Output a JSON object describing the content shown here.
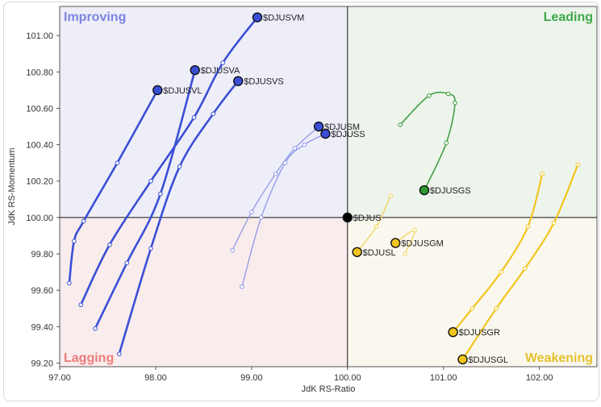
{
  "chart_data": {
    "type": "scatter",
    "subtype": "relative-rotation-graph",
    "xlabel": "JdK RS-Ratio",
    "ylabel": "JdK RS-Momentum",
    "xlim": [
      97.0,
      102.6
    ],
    "ylim": [
      99.18,
      101.16
    ],
    "center": [
      100.0,
      100.0
    ],
    "x_ticks": [
      97.0,
      98.0,
      99.0,
      100.0,
      101.0,
      102.0
    ],
    "x_tick_labels": [
      "97.00",
      "98.00",
      "99.00",
      "100.00",
      "101.00",
      "102.00"
    ],
    "y_ticks": [
      99.2,
      99.4,
      99.6,
      99.8,
      100.0,
      100.2,
      100.4,
      100.6,
      100.8,
      101.0
    ],
    "y_tick_labels": [
      "99.20",
      "99.40",
      "99.60",
      "99.80",
      "100.00",
      "100.20",
      "100.40",
      "100.60",
      "100.80",
      "101.00"
    ],
    "quadrants": [
      {
        "label": "Improving",
        "position": "top-left",
        "bg": "#eeeef9",
        "color": "#7b85e0"
      },
      {
        "label": "Leading",
        "position": "top-right",
        "bg": "#ecf4ec",
        "color": "#3fa84a"
      },
      {
        "label": "Lagging",
        "position": "bottom-left",
        "bg": "#f9ecec",
        "color": "#ef7b7b"
      },
      {
        "label": "Weakening",
        "position": "bottom-right",
        "bg": "#faf8ee",
        "color": "#e6c02c"
      }
    ],
    "series": [
      {
        "name": "$DJUSVM",
        "line_color": "#3a4fd6",
        "head_color": "#3a4fd6",
        "line_width": 2.6,
        "points": [
          [
            97.22,
            99.52
          ],
          [
            97.52,
            99.85
          ],
          [
            97.95,
            100.2
          ],
          [
            98.4,
            100.55
          ],
          [
            98.7,
            100.85
          ],
          [
            99.06,
            101.1
          ]
        ]
      },
      {
        "name": "$DJUSVA",
        "line_color": "#3a4fd6",
        "head_color": "#3a4fd6",
        "line_width": 2.6,
        "points": [
          [
            97.37,
            99.39
          ],
          [
            97.7,
            99.75
          ],
          [
            98.05,
            100.13
          ],
          [
            98.41,
            100.81
          ]
        ]
      },
      {
        "name": "$DJUSVL",
        "line_color": "#3a4fd6",
        "head_color": "#3a4fd6",
        "line_width": 2.6,
        "points": [
          [
            97.1,
            99.64
          ],
          [
            97.15,
            99.87
          ],
          [
            97.25,
            99.98
          ],
          [
            97.6,
            100.3
          ],
          [
            98.02,
            100.7
          ]
        ]
      },
      {
        "name": "$DJUSVS",
        "line_color": "#3a4fd6",
        "head_color": "#3a4fd6",
        "line_width": 2.6,
        "points": [
          [
            97.62,
            99.25
          ],
          [
            97.95,
            99.83
          ],
          [
            98.25,
            100.28
          ],
          [
            98.6,
            100.57
          ],
          [
            98.86,
            100.75
          ]
        ]
      },
      {
        "name": "$DJUSM",
        "line_color": "#8f98e8",
        "head_color": "#3a4fd6",
        "line_width": 1.3,
        "points": [
          [
            98.8,
            99.82
          ],
          [
            99.0,
            100.03
          ],
          [
            99.25,
            100.24
          ],
          [
            99.45,
            100.38
          ],
          [
            99.7,
            100.5
          ]
        ]
      },
      {
        "name": "$DJUSS",
        "line_color": "#8f98e8",
        "head_color": "#3a4fd6",
        "line_width": 1.3,
        "points": [
          [
            98.9,
            99.62
          ],
          [
            99.1,
            100.0
          ],
          [
            99.35,
            100.3
          ],
          [
            99.55,
            100.4
          ],
          [
            99.77,
            100.46
          ]
        ]
      },
      {
        "name": "$DJUSGS",
        "line_color": "#3a9a3a",
        "head_color": "#2e9a2e",
        "line_width": 1.5,
        "points": [
          [
            100.55,
            100.51
          ],
          [
            100.85,
            100.67
          ],
          [
            101.05,
            100.68
          ],
          [
            101.12,
            100.63
          ],
          [
            101.03,
            100.41
          ],
          [
            100.8,
            100.15
          ]
        ]
      },
      {
        "name": "$DJUSGM",
        "line_color": "#f3d35a",
        "head_color": "#f2c51e",
        "line_width": 1.3,
        "points": [
          [
            100.6,
            99.8
          ],
          [
            100.7,
            99.93
          ],
          [
            100.5,
            99.86
          ]
        ]
      },
      {
        "name": "$DJUSL",
        "line_color": "#f3d35a",
        "head_color": "#f2c51e",
        "line_width": 1.3,
        "points": [
          [
            100.45,
            100.12
          ],
          [
            100.3,
            99.95
          ],
          [
            100.1,
            99.81
          ]
        ]
      },
      {
        "name": "$DJUSGR",
        "line_color": "#f2c51e",
        "head_color": "#f2c51e",
        "line_width": 2.2,
        "points": [
          [
            102.03,
            100.24
          ],
          [
            101.88,
            99.95
          ],
          [
            101.6,
            99.7
          ],
          [
            101.3,
            99.5
          ],
          [
            101.1,
            99.37
          ]
        ]
      },
      {
        "name": "$DJUSGL",
        "line_color": "#f2c51e",
        "head_color": "#f2c51e",
        "line_width": 2.2,
        "points": [
          [
            102.4,
            100.29
          ],
          [
            102.15,
            99.97
          ],
          [
            101.85,
            99.72
          ],
          [
            101.55,
            99.5
          ],
          [
            101.2,
            99.22
          ]
        ]
      },
      {
        "name": "$DJUS",
        "line_color": "#000000",
        "head_color": "#000000",
        "line_width": 1.0,
        "points": [
          [
            100.0,
            100.0
          ]
        ]
      }
    ]
  }
}
